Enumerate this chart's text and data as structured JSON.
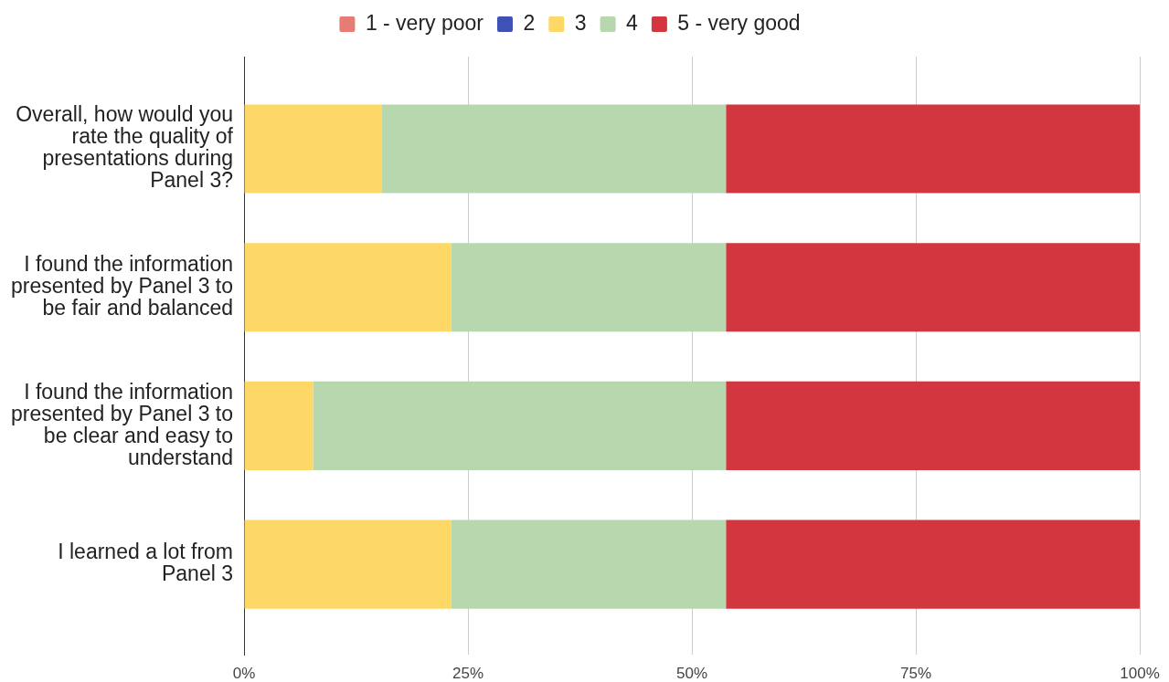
{
  "chart_data": {
    "type": "bar",
    "orientation": "horizontal",
    "stacked": true,
    "categories": [
      "Overall, how would you\nrate the quality of\npresentations during\nPanel 3?",
      "I found the information\npresented by Panel 3 to\nbe fair and balanced",
      "I found the information\npresented by Panel 3 to\nbe clear and easy to\nunderstand",
      "I learned a lot from\nPanel 3"
    ],
    "series": [
      {
        "name": "1 - very poor",
        "color": "#e67c73",
        "values": [
          0,
          0,
          0,
          0
        ]
      },
      {
        "name": "2",
        "color": "#3f51b5",
        "values": [
          0,
          0,
          0,
          0
        ]
      },
      {
        "name": "3",
        "color": "#fdd866",
        "values": [
          15.4,
          23.1,
          7.7,
          23.1
        ]
      },
      {
        "name": "4",
        "color": "#b7d7ae",
        "values": [
          38.4,
          30.7,
          46.1,
          30.7
        ]
      },
      {
        "name": "5 - very good",
        "color": "#d2363e",
        "values": [
          46.2,
          46.2,
          46.2,
          46.2
        ]
      }
    ],
    "xlim": [
      0,
      100
    ],
    "xticks": [
      {
        "value": 0,
        "label": "0%"
      },
      {
        "value": 25,
        "label": "25%"
      },
      {
        "value": 50,
        "label": "50%"
      },
      {
        "value": 75,
        "label": "75%"
      },
      {
        "value": 100,
        "label": "100%"
      }
    ],
    "grid": "x",
    "legend": "top"
  }
}
